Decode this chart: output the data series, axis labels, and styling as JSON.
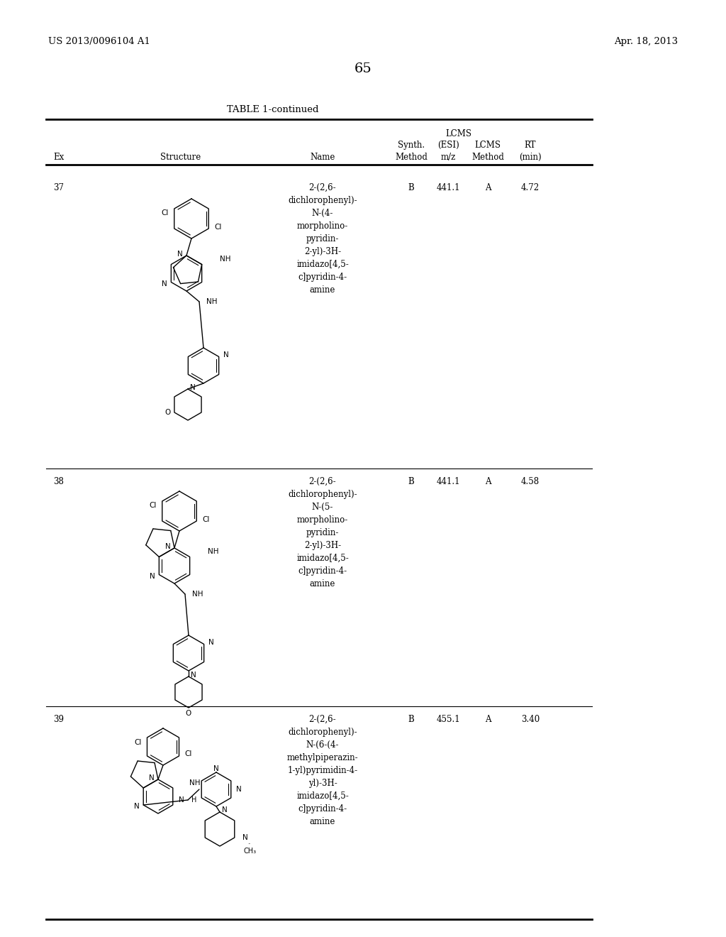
{
  "page_number": "65",
  "patent_number": "US 2013/0096104 A1",
  "patent_date": "Apr. 18, 2013",
  "table_title": "TABLE 1-continued",
  "rows": [
    {
      "ex": "37",
      "name": "2-(2,6-\ndichlorophenyl)-\nN-(4-\nmorpholino-\npyridin-\n2-yl)-3H-\nimidazo[4,5-\nc]pyridin-4-\namine",
      "synth_method": "B",
      "lcms_esi": "441.1",
      "lcms_method": "A",
      "rt": "4.72"
    },
    {
      "ex": "38",
      "name": "2-(2,6-\ndichlorophenyl)-\nN-(5-\nmorpholino-\npyridin-\n2-yl)-3H-\nimidazo[4,5-\nc]pyridin-4-\namine",
      "synth_method": "B",
      "lcms_esi": "441.1",
      "lcms_method": "A",
      "rt": "4.58"
    },
    {
      "ex": "39",
      "name": "2-(2,6-\ndichlorophenyl)-\nN-(6-(4-\nmethylpiperazin-\n1-yl)pyrimidin-4-\nyl)-3H-\nimidazo[4,5-\nc]pyridin-4-\namine",
      "synth_method": "B",
      "lcms_esi": "455.1",
      "lcms_method": "A",
      "rt": "3.40"
    }
  ],
  "background_color": "#ffffff",
  "text_color": "#000000"
}
